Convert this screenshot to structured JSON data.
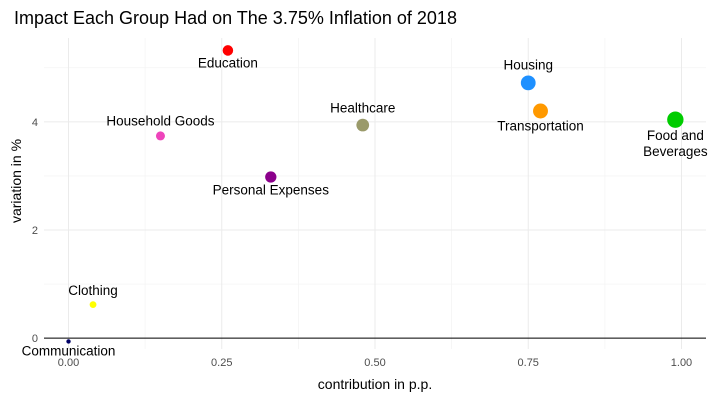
{
  "chart_data": {
    "type": "scatter",
    "title": "Impact Each Group Had on The 3.75% Inflation of 2018",
    "xlabel": "contribution in p.p.",
    "ylabel": "variation in %",
    "xlim": [
      -0.04,
      1.04
    ],
    "ylim": [
      -0.2,
      5.55
    ],
    "x_ticks": [
      0,
      0.25,
      0.5,
      0.75,
      1
    ],
    "x_tick_labels": [
      "0.00",
      "0.25",
      "0.50",
      "0.75",
      "1.00"
    ],
    "y_ticks": [
      0,
      2,
      4
    ],
    "y_tick_labels": [
      "0",
      "2",
      "4"
    ],
    "x_minor_ticks": [
      0.125,
      0.375,
      0.625,
      0.875
    ],
    "y_minor_ticks": [
      1,
      3,
      5
    ],
    "grid": true,
    "zero_line": true,
    "points": [
      {
        "label": "Education",
        "x": 0.26,
        "y": 5.32,
        "size": 0.26,
        "color": "#ff0000",
        "label_pos": "below"
      },
      {
        "label": "Household Goods",
        "x": 0.15,
        "y": 3.74,
        "size": 0.15,
        "color": "#ee44bb",
        "label_pos": "above"
      },
      {
        "label": "Healthcare",
        "x": 0.48,
        "y": 3.94,
        "size": 0.48,
        "color": "#9a9a6a",
        "label_pos": "above"
      },
      {
        "label": "Personal Expenses",
        "x": 0.33,
        "y": 2.98,
        "size": 0.33,
        "color": "#8b008b",
        "label_pos": "below"
      },
      {
        "label": "Housing",
        "x": 0.75,
        "y": 4.72,
        "size": 0.75,
        "color": "#1e90ff",
        "label_pos": "above"
      },
      {
        "label": "Transportation",
        "x": 0.77,
        "y": 4.2,
        "size": 0.77,
        "color": "#ff9900",
        "label_pos": "below"
      },
      {
        "label": "Food and\nBeverages",
        "x": 0.99,
        "y": 4.04,
        "size": 0.99,
        "color": "#00cc00",
        "label_pos": "below"
      },
      {
        "label": "Clothing",
        "x": 0.04,
        "y": 0.62,
        "size": 0.04,
        "color": "#ffff00",
        "label_pos": "above"
      },
      {
        "label": "Communication",
        "x": 0.0,
        "y": -0.06,
        "size": 0.0,
        "color": "#000066",
        "label_pos": "below"
      }
    ]
  }
}
